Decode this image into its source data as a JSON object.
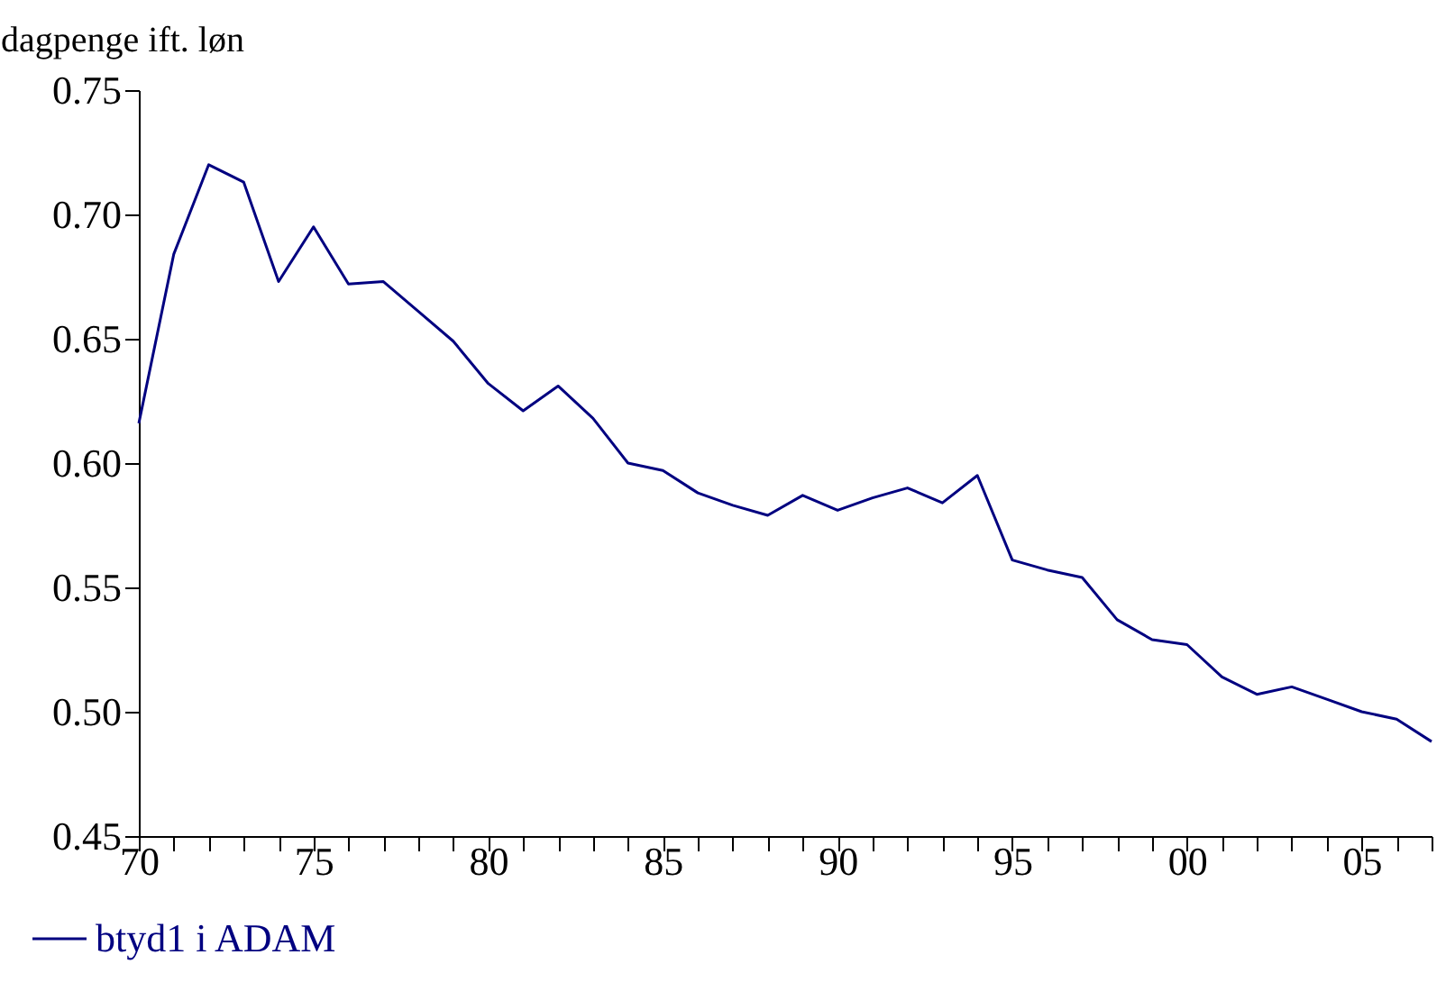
{
  "chart_data": {
    "type": "line",
    "ylabel": "dagpenge ift. løn",
    "categories": [
      "70",
      null,
      null,
      null,
      null,
      "75",
      null,
      null,
      null,
      null,
      "80",
      null,
      null,
      null,
      null,
      "85",
      null,
      null,
      null,
      null,
      "90",
      null,
      null,
      null,
      null,
      "95",
      null,
      null,
      null,
      null,
      "00",
      null,
      null,
      null,
      null,
      "05",
      null,
      null
    ],
    "series": [
      {
        "name": "btyd1 i ADAM",
        "color": "#000080",
        "values": [
          0.616,
          0.684,
          0.72,
          0.713,
          0.673,
          0.695,
          0.672,
          0.673,
          0.661,
          0.649,
          0.632,
          0.621,
          0.631,
          0.618,
          0.6,
          0.597,
          0.588,
          0.583,
          0.579,
          0.587,
          0.581,
          0.586,
          0.59,
          0.584,
          0.595,
          0.561,
          0.557,
          0.554,
          0.537,
          0.529,
          0.527,
          0.514,
          0.507,
          0.51,
          0.505,
          0.5,
          0.497,
          0.488
        ]
      }
    ],
    "ylim": [
      0.45,
      0.75
    ],
    "yticks": [
      {
        "value": 0.45,
        "label": "0.45"
      },
      {
        "value": 0.5,
        "label": "0.50"
      },
      {
        "value": 0.55,
        "label": "0.55"
      },
      {
        "value": 0.6,
        "label": "0.60"
      },
      {
        "value": 0.65,
        "label": "0.65"
      },
      {
        "value": 0.7,
        "label": "0.70"
      },
      {
        "value": 0.75,
        "label": "0.75"
      }
    ],
    "grid": false,
    "legend": "bottom left"
  }
}
